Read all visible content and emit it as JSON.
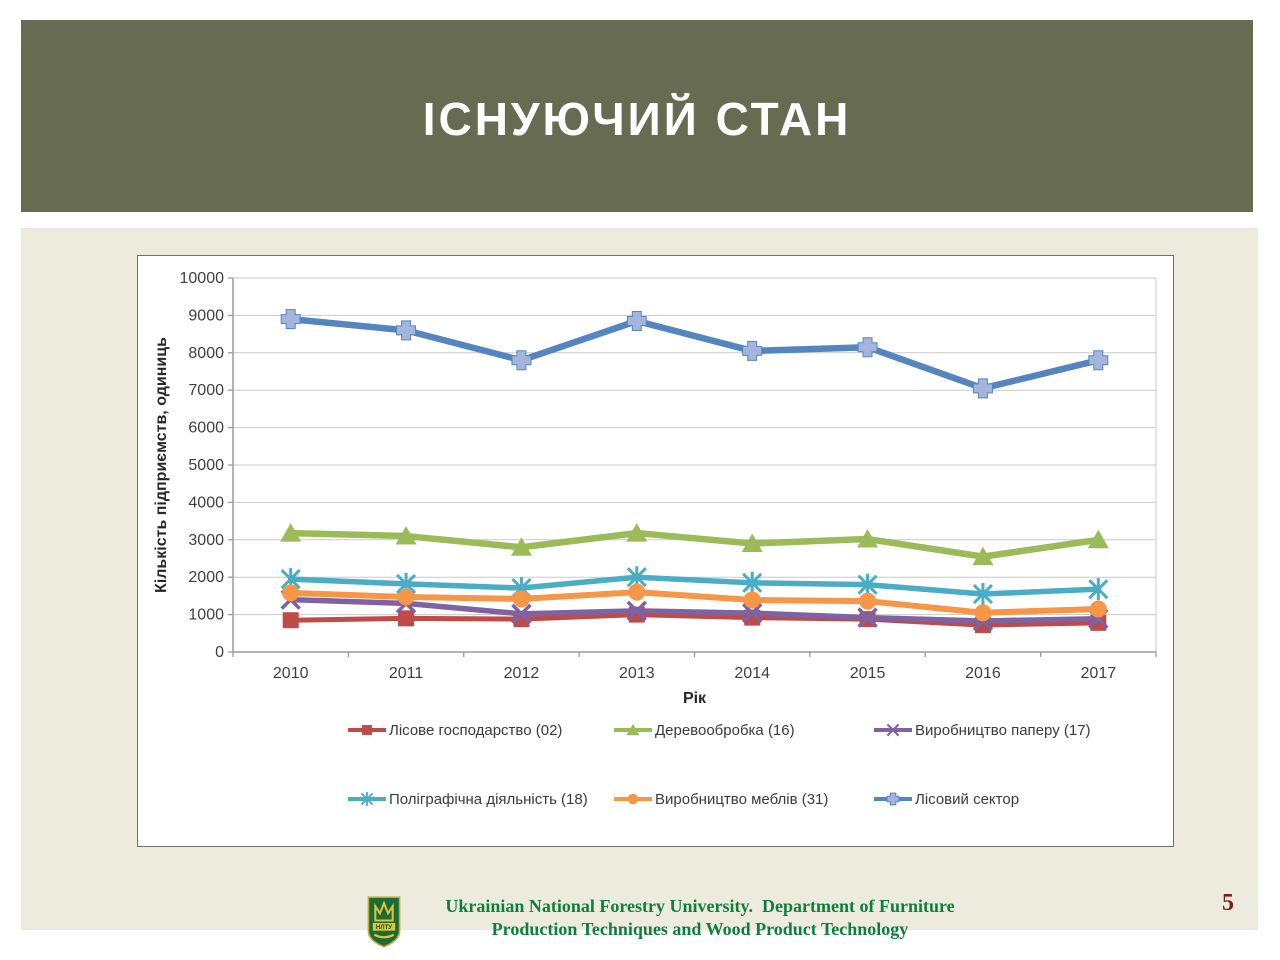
{
  "slide": {
    "title": "ІСНУЮЧИЙ СТАН",
    "page_number": "5"
  },
  "footer": {
    "line1": "Ukrainian National Forestry University.  Department of Furniture",
    "line2": "Production Techniques and Wood Product Technology",
    "logo": "unfu-crest-icon",
    "logo_text": "НЛТУ"
  },
  "colors": {
    "header_bg": "#676B51",
    "content_bg": "#ECEBDE",
    "title_text": "#FFFFFF",
    "footer_text": "#0E7E3A",
    "page_number": "#7E1B1B",
    "grid_line": "#C9C9C9",
    "axis_line": "#9A9A9A",
    "chart_border": "#6F6F6F"
  },
  "chart_data": {
    "type": "line",
    "x": [
      "2010",
      "2011",
      "2012",
      "2013",
      "2014",
      "2015",
      "2016",
      "2017"
    ],
    "xlabel": "Рік",
    "ylabel": "Кількість підприємств, одиниць",
    "ylim": [
      0,
      10000
    ],
    "ytick_step": 1000,
    "grid": true,
    "legend_position": "bottom-two-rows",
    "series": [
      {
        "name": "Лісове господарство (02)",
        "color": "#BE4B48",
        "marker": "square",
        "values": [
          850,
          900,
          880,
          1000,
          920,
          880,
          720,
          780
        ]
      },
      {
        "name": "Деревообробка (16)",
        "color": "#9BBB59",
        "marker": "triangle",
        "values": [
          3180,
          3100,
          2800,
          3180,
          2900,
          3020,
          2550,
          3000
        ]
      },
      {
        "name": "Виробництво паперу (17)",
        "color": "#7E62A1",
        "marker": "x",
        "values": [
          1400,
          1300,
          1020,
          1100,
          1040,
          920,
          830,
          890
        ]
      },
      {
        "name": "Поліграфічна діяльність (18)",
        "color": "#4BACC6",
        "marker": "asterisk",
        "values": [
          1950,
          1820,
          1710,
          2000,
          1850,
          1800,
          1550,
          1680
        ]
      },
      {
        "name": "Виробництво меблів (31)",
        "color": "#F79646",
        "marker": "circle",
        "values": [
          1580,
          1470,
          1420,
          1600,
          1390,
          1360,
          1050,
          1150
        ]
      },
      {
        "name": "Лісовий сектор",
        "color": "#5585C1",
        "marker": "plus",
        "marker_color": "#A3B5DC",
        "values": [
          8900,
          8600,
          7800,
          8850,
          8050,
          8150,
          7050,
          7800
        ]
      }
    ]
  }
}
